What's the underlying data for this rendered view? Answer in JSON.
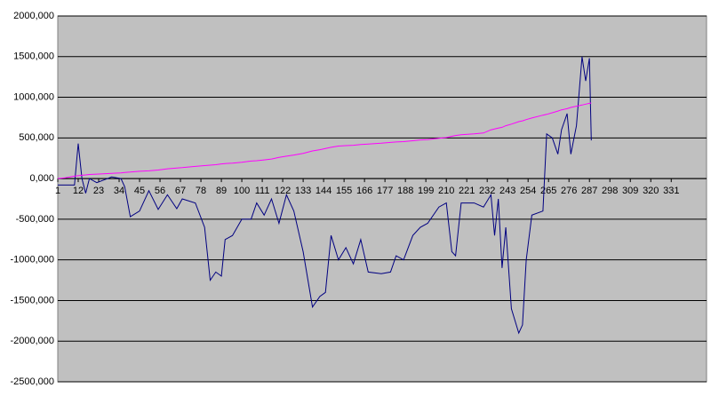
{
  "chart_data": {
    "type": "line",
    "x": [
      1,
      5,
      10,
      12,
      14,
      16,
      18,
      22,
      30,
      35,
      37,
      40,
      45,
      50,
      55,
      60,
      65,
      68,
      75,
      80,
      83,
      86,
      89,
      91,
      95,
      100,
      105,
      108,
      112,
      116,
      120,
      124,
      128,
      133,
      138,
      142,
      145,
      148,
      152,
      156,
      160,
      164,
      168,
      175,
      180,
      183,
      187,
      192,
      196,
      200,
      206,
      210,
      213,
      215,
      218,
      225,
      230,
      234,
      236,
      238,
      240,
      242,
      245,
      249,
      251,
      253,
      256,
      262,
      264,
      267,
      270,
      272,
      275,
      277,
      280,
      283,
      285,
      287,
      288
    ],
    "series": [
      {
        "color": "#000080",
        "values": [
          -80000,
          -80000,
          -80000,
          430000,
          0,
          -180000,
          0,
          -50000,
          20000,
          0,
          -100000,
          -470000,
          -400000,
          -150000,
          -380000,
          -200000,
          -370000,
          -250000,
          -300000,
          -600000,
          -1250000,
          -1150000,
          -1200000,
          -750000,
          -700000,
          -500000,
          -500000,
          -300000,
          -450000,
          -250000,
          -550000,
          -200000,
          -400000,
          -900000,
          -1580000,
          -1450000,
          -1400000,
          -700000,
          -1000000,
          -850000,
          -1050000,
          -750000,
          -1150000,
          -1170000,
          -1150000,
          -950000,
          -1000000,
          -700000,
          -600000,
          -550000,
          -350000,
          -300000,
          -900000,
          -950000,
          -300000,
          -300000,
          -350000,
          -200000,
          -700000,
          -250000,
          -1100000,
          -600000,
          -1600000,
          -1900000,
          -1800000,
          -1000000,
          -450000,
          -400000,
          550000,
          500000,
          300000,
          600000,
          800000,
          300000,
          650000,
          1500000,
          1200000,
          1480000,
          470000
        ]
      },
      {
        "color": "#ff00ff",
        "values": [
          0,
          10000,
          30000,
          35000,
          40000,
          45000,
          50000,
          55000,
          65000,
          70000,
          75000,
          80000,
          90000,
          95000,
          105000,
          120000,
          130000,
          135000,
          150000,
          160000,
          165000,
          170000,
          180000,
          185000,
          190000,
          200000,
          215000,
          220000,
          230000,
          240000,
          260000,
          275000,
          290000,
          310000,
          340000,
          355000,
          370000,
          385000,
          400000,
          405000,
          410000,
          420000,
          425000,
          435000,
          445000,
          450000,
          455000,
          465000,
          475000,
          480000,
          495000,
          505000,
          520000,
          530000,
          540000,
          550000,
          560000,
          600000,
          610000,
          620000,
          630000,
          650000,
          670000,
          700000,
          710000,
          725000,
          745000,
          780000,
          790000,
          810000,
          830000,
          845000,
          860000,
          875000,
          890000,
          905000,
          915000,
          925000,
          930000
        ]
      }
    ],
    "xlim": [
      1,
      350
    ],
    "xticks": [
      1,
      12,
      23,
      34,
      45,
      56,
      67,
      78,
      89,
      100,
      111,
      122,
      133,
      144,
      155,
      166,
      177,
      188,
      199,
      210,
      221,
      232,
      243,
      254,
      265,
      276,
      287,
      298,
      309,
      320,
      331
    ],
    "ylim": [
      -2500000,
      2000000
    ],
    "yticks": [
      {
        "value": 2000000,
        "label": "2000,000"
      },
      {
        "value": 1500000,
        "label": "1500,000"
      },
      {
        "value": 1000000,
        "label": "1000,000"
      },
      {
        "value": 500000,
        "label": "500,000"
      },
      {
        "value": 0,
        "label": "0,000"
      },
      {
        "value": -500000,
        "label": "-500,000"
      },
      {
        "value": -1000000,
        "label": "-1000,000"
      },
      {
        "value": -1500000,
        "label": "-1500,000"
      },
      {
        "value": -2000000,
        "label": "-2000,000"
      },
      {
        "value": -2500000,
        "label": "-2500,000"
      }
    ],
    "grid": true
  }
}
